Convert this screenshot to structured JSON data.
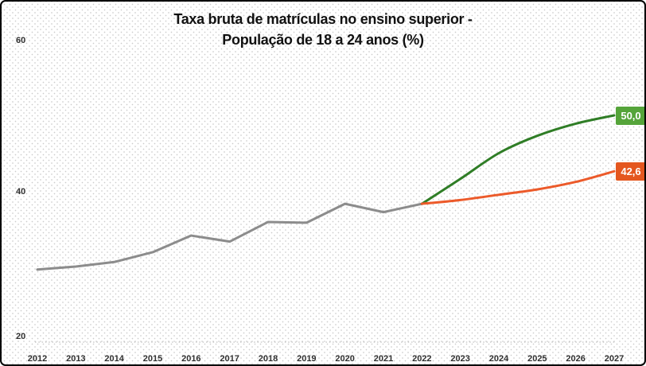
{
  "title": {
    "line1": "Taxa bruta de matrículas no ensino superior -",
    "line2": "População de 18 a 24 anos (%)"
  },
  "chart_data": {
    "type": "line",
    "title": "Taxa bruta de matrículas no ensino superior - População de 18 a 24 anos (%)",
    "xlabel": "",
    "ylabel": "",
    "categories": [
      "2012",
      "2013",
      "2014",
      "2015",
      "2016",
      "2017",
      "2018",
      "2019",
      "2020",
      "2021",
      "2022",
      "2023",
      "2024",
      "2025",
      "2026",
      "2027"
    ],
    "y_ticks": [
      "20",
      "40",
      "60"
    ],
    "ylim": [
      20,
      60
    ],
    "legend": "none",
    "grid": "single dotted horizontal line at y=20",
    "series": [
      {
        "name": "serie-historica",
        "color": "#8c8c8c",
        "smooth": false,
        "start_index": 0,
        "values": [
          29.6,
          30.0,
          30.6,
          31.9,
          34.1,
          33.3,
          35.9,
          35.8,
          38.3,
          37.2,
          38.3
        ]
      },
      {
        "name": "meta-pne",
        "color": "#2f7d26",
        "smooth": true,
        "start_index": 10,
        "values": [
          38.3,
          41.6,
          45.0,
          47.3,
          48.9,
          50.0
        ],
        "end_label": {
          "text": "50,0",
          "bg": "#55a43a"
        }
      },
      {
        "name": "projecao-tendencia",
        "color": "#ec5a2a",
        "smooth": true,
        "start_index": 10,
        "values": [
          38.3,
          38.8,
          39.5,
          40.2,
          41.2,
          42.6
        ],
        "end_label": {
          "text": "42,6",
          "bg": "#e4571f"
        }
      }
    ]
  },
  "colors": {
    "historical_line": "#8c8c8c",
    "target_line": "#2f7d26",
    "target_label_bg": "#55a43a",
    "projection_line": "#ec5a2a",
    "projection_label_bg": "#e4571f",
    "axis_text": "#303030",
    "gridline": "#b3b3b3"
  }
}
